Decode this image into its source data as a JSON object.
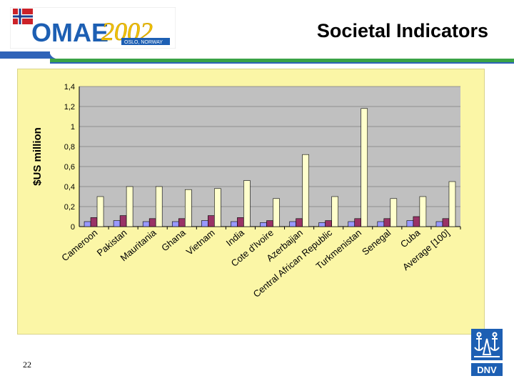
{
  "slide": {
    "title": "Societal Indicators",
    "page_number": "22"
  },
  "logo": {
    "omae_text": "OMAE",
    "year_text": "2002",
    "location_text": "OSLO, NORWAY"
  },
  "dnv": {
    "text": "DNV"
  },
  "colors": {
    "series1": "#9999ff",
    "series2": "#993366",
    "series3": "#ffffcc",
    "plot_bg": "#c0c0c0",
    "chart_bg": "#fbf6a6",
    "rule_green": "#3aa346",
    "rule_blue": "#2f63b8",
    "logo_blue": "#1d5fb3",
    "logo_yellow": "#ffcc00"
  },
  "chart_data": {
    "type": "bar",
    "ylabel": "$US million",
    "xlabel": "",
    "ylim": [
      0,
      1.4
    ],
    "yticks": [
      "0",
      "0,2",
      "0,4",
      "0,6",
      "0,8",
      "1",
      "1,2",
      "1,4"
    ],
    "grid": true,
    "legend": "none",
    "categories": [
      "Cameroon",
      "Pakistan",
      "Mauritania",
      "Ghana",
      "Vietnam",
      "India",
      "Cote d'Ivoire",
      "Azerbaijan",
      "Central African Republic",
      "Turkmenistan",
      "Senegal",
      "Cuba",
      "Average [100]"
    ],
    "series": [
      {
        "values": [
          0.05,
          0.06,
          0.05,
          0.05,
          0.06,
          0.05,
          0.04,
          0.05,
          0.04,
          0.05,
          0.05,
          0.06,
          0.05
        ]
      },
      {
        "values": [
          0.09,
          0.11,
          0.08,
          0.08,
          0.11,
          0.09,
          0.06,
          0.08,
          0.06,
          0.08,
          0.08,
          0.1,
          0.08
        ]
      },
      {
        "values": [
          0.3,
          0.4,
          0.4,
          0.37,
          0.38,
          0.46,
          0.28,
          0.72,
          0.3,
          1.18,
          0.28,
          0.3,
          0.45
        ]
      }
    ]
  }
}
